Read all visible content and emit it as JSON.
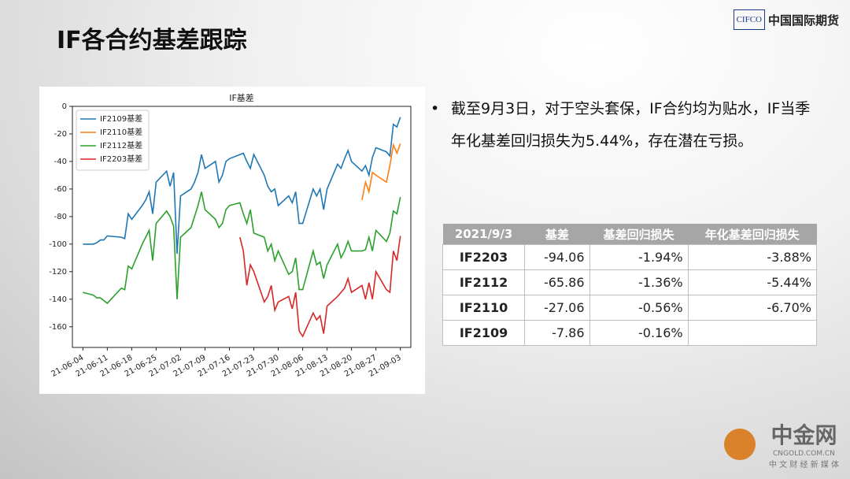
{
  "header": {
    "title": "IF各合约基差跟踪",
    "logo_mark": "CIFCO",
    "logo_text": "中国国际期货"
  },
  "chart_data": {
    "type": "line",
    "title": "IF基差",
    "legend": "upper left",
    "grid": false,
    "x": [
      "21-06-04",
      "21-06-07",
      "21-06-08",
      "21-06-09",
      "21-06-10",
      "21-06-11",
      "21-06-15",
      "21-06-16",
      "21-06-17",
      "21-06-18",
      "21-06-21",
      "21-06-22",
      "21-06-23",
      "21-06-24",
      "21-06-25",
      "21-06-28",
      "21-06-29",
      "21-06-30",
      "21-07-01",
      "21-07-02",
      "21-07-05",
      "21-07-06",
      "21-07-07",
      "21-07-08",
      "21-07-09",
      "21-07-12",
      "21-07-13",
      "21-07-14",
      "21-07-15",
      "21-07-16",
      "21-07-19",
      "21-07-20",
      "21-07-21",
      "21-07-22",
      "21-07-23",
      "21-07-26",
      "21-07-27",
      "21-07-28",
      "21-07-29",
      "21-07-30",
      "21-08-02",
      "21-08-03",
      "21-08-04",
      "21-08-05",
      "21-08-06",
      "21-08-09",
      "21-08-10",
      "21-08-11",
      "21-08-12",
      "21-08-13",
      "21-08-16",
      "21-08-17",
      "21-08-18",
      "21-08-19",
      "21-08-20",
      "21-08-23",
      "21-08-24",
      "21-08-25",
      "21-08-26",
      "21-08-27",
      "21-08-30",
      "21-08-31",
      "21-09-01",
      "21-09-02",
      "21-09-03"
    ],
    "xlim": [
      "21-06-01",
      "21-09-06"
    ],
    "xticks": [
      "21-06-04",
      "21-06-11",
      "21-06-18",
      "21-06-25",
      "21-07-02",
      "21-07-09",
      "21-07-16",
      "21-07-23",
      "21-07-30",
      "21-08-06",
      "21-08-13",
      "21-08-20",
      "21-08-27",
      "21-09-03"
    ],
    "ylim": [
      -175,
      0
    ],
    "yticks": [
      0,
      -20,
      -40,
      -60,
      -80,
      -100,
      -120,
      -140,
      -160
    ],
    "series": [
      {
        "name": "IF2109基差",
        "color": "#1f77b4",
        "values": [
          -100,
          -100,
          -99,
          -97,
          -97,
          -94,
          -95,
          -96,
          -78,
          -82,
          -72,
          -68,
          -62,
          -78,
          -55,
          -47,
          -58,
          -48,
          -107,
          -65,
          -60,
          -55,
          -48,
          -35,
          -45,
          -40,
          -55,
          -50,
          -40,
          -38,
          -35,
          -34,
          -40,
          -45,
          -35,
          -50,
          -58,
          -62,
          -60,
          -72,
          -65,
          -70,
          -62,
          -85,
          -85,
          -60,
          -65,
          -60,
          -75,
          -60,
          -42,
          -45,
          -38,
          -32,
          -40,
          -47,
          -43,
          -50,
          -37,
          -30,
          -33,
          -36,
          -13,
          -15,
          -7.86
        ]
      },
      {
        "name": "IF2110基差",
        "color": "#ff7f0e",
        "values": [
          null,
          null,
          null,
          null,
          null,
          null,
          null,
          null,
          null,
          null,
          null,
          null,
          null,
          null,
          null,
          null,
          null,
          null,
          null,
          null,
          null,
          null,
          null,
          null,
          null,
          null,
          null,
          null,
          null,
          null,
          null,
          null,
          null,
          null,
          null,
          null,
          null,
          null,
          null,
          null,
          null,
          null,
          null,
          null,
          null,
          null,
          null,
          null,
          null,
          null,
          null,
          null,
          null,
          null,
          null,
          -68,
          -55,
          -62,
          -48,
          -50,
          -55,
          -43,
          -28,
          -34,
          -27.06
        ]
      },
      {
        "name": "IF2112基差",
        "color": "#2ca02c",
        "values": [
          -135,
          -137,
          -139,
          -139,
          -141,
          -143,
          -132,
          -133,
          -116,
          -118,
          -100,
          -95,
          -90,
          -112,
          -85,
          -76,
          -80,
          -87,
          -140,
          -95,
          -88,
          -80,
          -72,
          -62,
          -75,
          -82,
          -88,
          -85,
          -75,
          -72,
          -70,
          -78,
          -85,
          -75,
          -92,
          -95,
          -105,
          -100,
          -112,
          -105,
          -122,
          -120,
          -110,
          -133,
          -133,
          -105,
          -115,
          -113,
          -125,
          -115,
          -100,
          -110,
          -105,
          -98,
          -105,
          -105,
          -104,
          -95,
          -105,
          -90,
          -98,
          -92,
          -76,
          -78,
          -65.86
        ]
      },
      {
        "name": "IF2203基差",
        "color": "#d62728",
        "values": [
          null,
          null,
          null,
          null,
          null,
          null,
          null,
          null,
          null,
          null,
          null,
          null,
          null,
          null,
          null,
          null,
          null,
          null,
          null,
          null,
          null,
          null,
          null,
          null,
          null,
          null,
          null,
          null,
          null,
          null,
          -95,
          -105,
          -130,
          -115,
          -120,
          -142,
          -138,
          -130,
          -148,
          -142,
          -138,
          -147,
          -135,
          -163,
          -167,
          -150,
          -155,
          -152,
          -165,
          -145,
          -138,
          -135,
          -132,
          -125,
          -135,
          -130,
          -140,
          -128,
          -140,
          -120,
          -133,
          -135,
          -105,
          -112,
          -94.06
        ]
      }
    ]
  },
  "bullet": "截至9月3日，对于空头套保，IF合约均为贴水，IF当季年化基差回归损失为5.44%，存在潜在亏损。",
  "table": {
    "header": [
      "2021/9/3",
      "基差",
      "基差回归损失",
      "年化基差回归损失"
    ],
    "rows": [
      [
        "IF2203",
        "-94.06",
        "-1.94%",
        "-3.88%"
      ],
      [
        "IF2112",
        "-65.86",
        "-1.36%",
        "-5.44%"
      ],
      [
        "IF2110",
        "-27.06",
        "-0.56%",
        "-6.70%"
      ],
      [
        "IF2109",
        "-7.86",
        "-0.16%"
      ]
    ]
  },
  "watermark": {
    "name": "中金网",
    "domain": "CNGOLD.COM.CN",
    "tagline": "中 文 财 经 新 媒 体"
  }
}
